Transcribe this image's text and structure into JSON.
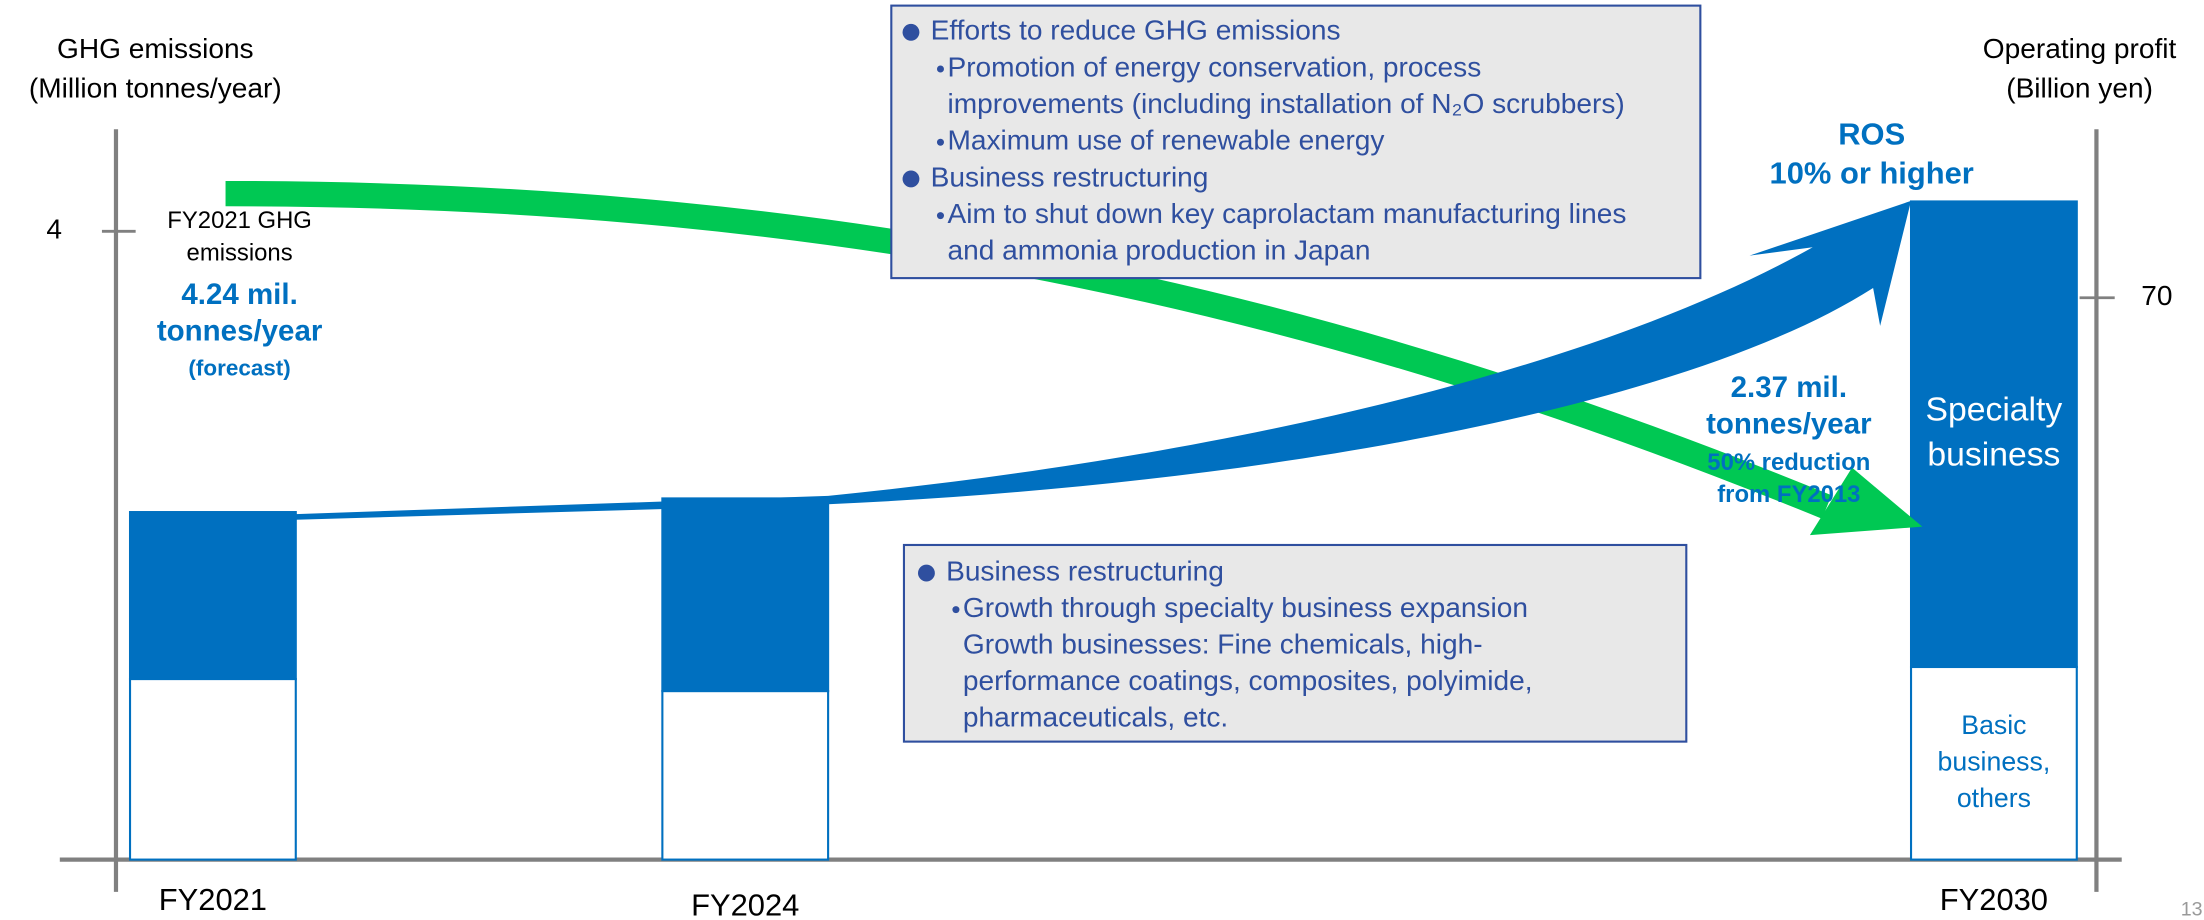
{
  "chart_data": {
    "type": "bar",
    "stacked": true,
    "categories": [
      "FY2021",
      "FY2024",
      "FY2030"
    ],
    "ylabel": [
      "GHG emissions",
      "(Million tonnes/year)"
    ],
    "y2label": [
      "Operating profit",
      "(Billion yen)"
    ],
    "ylim": [
      0,
      4.65
    ],
    "yticks": [
      4
    ],
    "y2lim": [
      0,
      91
    ],
    "y2ticks": [
      70
    ],
    "series": [
      {
        "label": [
          "Basic",
          "business,",
          "others"
        ],
        "color": "#ffffff",
        "edge": "#0070c0",
        "axis": "y2",
        "values": [
          22.5,
          21,
          24
        ]
      },
      {
        "label": [
          "Specialty",
          "business"
        ],
        "color": "#0070c0",
        "edge": "#0070c0",
        "axis": "y2",
        "values": [
          20.8,
          24,
          58
        ]
      },
      {
        "type": "arrow",
        "color": "#00c853",
        "axis": "y",
        "values": [
          4.24,
          null,
          2.37
        ]
      }
    ],
    "annotations": {
      "fy2021_ghg": [
        "FY2021 GHG",
        "emissions",
        "4.24 mil.",
        "tonnes/year",
        "(forecast)"
      ],
      "fy2030_ghg": [
        "2.37 mil.",
        "tonnes/year",
        "50% reduction",
        "from FY2013"
      ],
      "ros": [
        "ROS",
        "10% or higher"
      ]
    },
    "box1": [
      {
        "level": 1,
        "text": "Efforts to reduce GHG emissions"
      },
      {
        "level": 2,
        "text": "Promotion of energy conservation, process"
      },
      {
        "level": 2,
        "continued": true,
        "text": "improvements (including installation of N₂O scrubbers)"
      },
      {
        "level": 2,
        "text": "Maximum use of renewable energy"
      },
      {
        "level": 1,
        "text": "Business restructuring"
      },
      {
        "level": 2,
        "text": "Aim to shut down key caprolactam manufacturing lines"
      },
      {
        "level": 2,
        "continued": true,
        "text": "and ammonia production in Japan"
      }
    ],
    "box2": [
      {
        "level": 1,
        "text": "Business restructuring"
      },
      {
        "level": 2,
        "text": "Growth through specialty business expansion"
      },
      {
        "level": 2,
        "continued": true,
        "text": "Growth businesses: Fine chemicals, high-"
      },
      {
        "level": 2,
        "continued": true,
        "text": "performance coatings, composites, polyimide,"
      },
      {
        "level": 2,
        "continued": true,
        "text": "pharmaceuticals, etc."
      }
    ],
    "page_number": "13"
  }
}
